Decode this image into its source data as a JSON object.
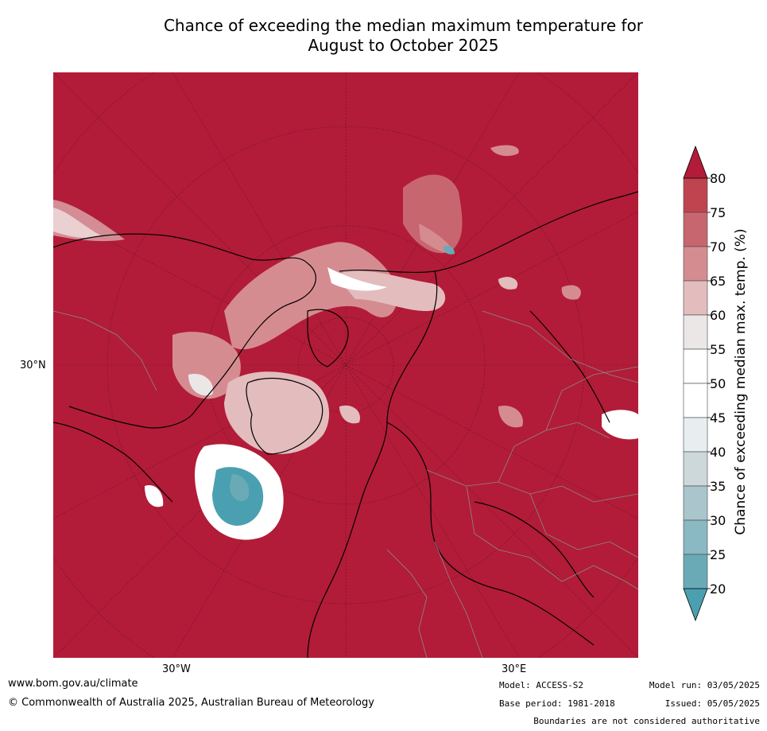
{
  "title_line1": "Chance of exceeding the median maximum temperature for",
  "title_line2": "August to October 2025",
  "axis": {
    "lat_label": "30°N",
    "lon_left": "30°W",
    "lon_right": "30°E"
  },
  "colorbar": {
    "label": "Chance of exceeding median max. temp. (%)",
    "ticks": [
      "80",
      "75",
      "70",
      "65",
      "60",
      "55",
      "50",
      "45",
      "40",
      "35",
      "30",
      "25",
      "20"
    ],
    "colors": {
      "above80": "#b21c38",
      "75-80": "#bf4450",
      "70-75": "#c8666f",
      "65-70": "#d58c91",
      "60-65": "#e3bcbe",
      "55-60": "#ebe7e7",
      "50-55": "#ffffff",
      "45-50": "#ffffff",
      "40-45": "#e8edef",
      "35-40": "#cdd8da",
      "30-35": "#aac6cc",
      "25-30": "#8ab8c3",
      "20-25": "#6aaab7",
      "below20": "#4aa0b0"
    }
  },
  "footer": {
    "website": "www.bom.gov.au/climate",
    "copyright": "© Commonwealth of Australia 2025, Australian Bureau of Meteorology",
    "model": "Model: ACCESS-S2",
    "base_period": "Base period: 1981-2018",
    "model_run": "Model run: 03/05/2025",
    "issued": "Issued: 05/05/2025",
    "disclaimer": "Boundaries are not considered authoritative"
  }
}
